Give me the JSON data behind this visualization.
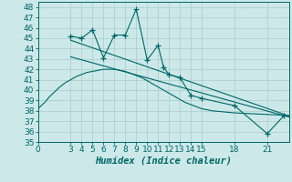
{
  "xlabel": "Humidex (Indice chaleur)",
  "bg_color": "#cce8e8",
  "line_color": "#006666",
  "xlim": [
    0,
    23
  ],
  "ylim": [
    35,
    48.5
  ],
  "yticks": [
    35,
    36,
    37,
    38,
    39,
    40,
    41,
    42,
    43,
    44,
    45,
    46,
    47,
    48
  ],
  "xticks": [
    0,
    3,
    4,
    5,
    6,
    7,
    8,
    9,
    10,
    11,
    12,
    13,
    14,
    15,
    18,
    21
  ],
  "curve_x": [
    0,
    0.3,
    0.7,
    1.0,
    1.5,
    2.0,
    2.5,
    3.0,
    3.5,
    4.0,
    4.5,
    5.0,
    5.5,
    6.0,
    6.5,
    7.0,
    7.5,
    8.0,
    8.5,
    9.0,
    9.5,
    10.0,
    10.5,
    11.0,
    11.5,
    12.0,
    12.5,
    13.0,
    13.5,
    14.0,
    14.5,
    15.0,
    16.0,
    17.0,
    18.0,
    19.0,
    20.0,
    21.0,
    22.0,
    23.0
  ],
  "curve_y": [
    38.2,
    38.5,
    38.9,
    39.3,
    39.8,
    40.3,
    40.7,
    41.0,
    41.3,
    41.5,
    41.7,
    41.8,
    41.9,
    42.0,
    42.0,
    42.0,
    41.9,
    41.8,
    41.6,
    41.4,
    41.2,
    40.9,
    40.6,
    40.3,
    40.0,
    39.7,
    39.4,
    39.1,
    38.8,
    38.6,
    38.4,
    38.2,
    38.0,
    37.9,
    37.8,
    37.75,
    37.7,
    37.65,
    37.6,
    37.55
  ],
  "data_x": [
    3,
    4,
    5,
    6,
    7,
    8,
    9,
    10,
    11,
    11.5,
    12,
    13,
    14,
    15,
    18,
    21,
    22.5
  ],
  "data_y": [
    45.2,
    45.0,
    45.8,
    43.1,
    45.3,
    45.3,
    47.8,
    42.9,
    44.3,
    42.2,
    41.5,
    41.2,
    39.5,
    39.2,
    38.5,
    35.8,
    37.5
  ],
  "trend1_x": [
    3,
    23
  ],
  "trend1_y": [
    44.8,
    37.5
  ],
  "trend2_x": [
    3,
    23
  ],
  "trend2_y": [
    43.2,
    37.4
  ],
  "font_size_tick": 6.5,
  "font_size_label": 7.5
}
